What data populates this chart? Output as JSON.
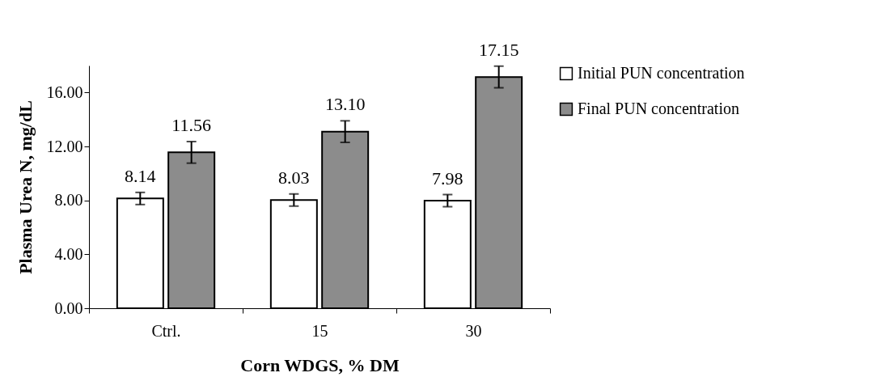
{
  "chart_data": {
    "type": "bar",
    "xlabel": "Corn WDGS, % DM",
    "ylabel": "Plasma Urea N, mg/dL",
    "categories": [
      "Ctrl.",
      "15",
      "30"
    ],
    "series": [
      {
        "name": "Initial PUN concentration",
        "color": "#ffffff",
        "values": [
          8.14,
          8.03,
          7.98
        ],
        "errors": [
          0.45,
          0.45,
          0.45
        ],
        "value_labels": [
          "8.14",
          "8.03",
          "7.98"
        ]
      },
      {
        "name": "Final PUN concentration",
        "color": "#8c8c8c",
        "values": [
          11.56,
          13.1,
          17.15
        ],
        "errors": [
          0.8,
          0.8,
          0.8
        ],
        "value_labels": [
          "11.56",
          "13.10",
          "17.15"
        ]
      }
    ],
    "ylim": [
      0,
      18
    ],
    "yticks": [
      {
        "value": 0,
        "label": "0.00"
      },
      {
        "value": 4,
        "label": "4.00"
      },
      {
        "value": 8,
        "label": "8.00"
      },
      {
        "value": 12,
        "label": "12.00"
      },
      {
        "value": 16,
        "label": "16.00"
      }
    ],
    "grid": false,
    "legend": "right"
  }
}
